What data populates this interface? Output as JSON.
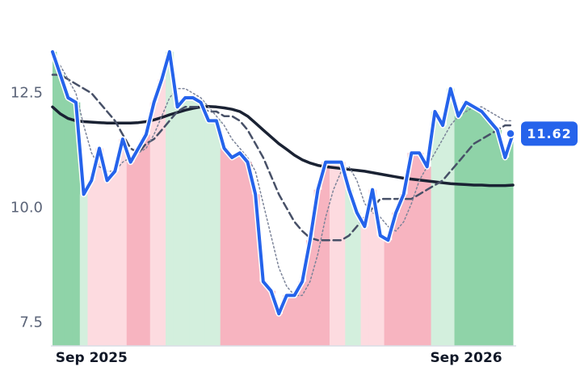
{
  "chart_data": {
    "type": "line",
    "categories": [
      null,
      null,
      null,
      null,
      null,
      "Sep 2025",
      null,
      null,
      null,
      null,
      null,
      null,
      null,
      null,
      null,
      null,
      null,
      null,
      null,
      null,
      null,
      null,
      null,
      null,
      null,
      null,
      null,
      null,
      null,
      null,
      null,
      null,
      null,
      null,
      null,
      null,
      null,
      null,
      null,
      null,
      null,
      null,
      null,
      null,
      null,
      null,
      null,
      null,
      null,
      null,
      null,
      null,
      null,
      "Sep 2026",
      null,
      null,
      null,
      null,
      null,
      null
    ],
    "ylim": [
      7,
      14
    ],
    "yticks": [
      7.5,
      {
        "value": 10,
        "label": "10.0"
      },
      12.5
    ],
    "series": [
      {
        "color": "#2563eb",
        "width": 4,
        "dash": "none",
        "values": [
          13.4,
          12.9,
          12.4,
          12.3,
          10.3,
          10.6,
          11.3,
          10.6,
          10.8,
          11.5,
          11.0,
          11.3,
          11.6,
          12.3,
          12.8,
          13.4,
          12.2,
          12.4,
          12.4,
          12.3,
          11.9,
          11.9,
          11.3,
          11.1,
          11.2,
          11.0,
          10.3,
          8.4,
          8.2,
          7.7,
          8.1,
          8.1,
          8.4,
          9.3,
          10.4,
          11.0,
          11.0,
          11.0,
          10.4,
          9.9,
          9.6,
          10.4,
          9.4,
          9.3,
          9.9,
          10.3,
          11.2,
          11.2,
          10.9,
          12.1,
          11.8,
          12.6,
          12.0,
          12.3,
          12.2,
          12.1,
          11.9,
          11.7,
          11.1,
          11.62
        ]
      },
      {
        "color": "#7c8499",
        "width": 1.5,
        "dash": "2 3",
        "values": [
          13.3,
          13.1,
          12.8,
          12.5,
          11.8,
          11.2,
          10.9,
          10.8,
          10.8,
          11.0,
          11.1,
          11.2,
          11.3,
          11.6,
          12.0,
          12.4,
          12.6,
          12.6,
          12.5,
          12.4,
          12.2,
          12.0,
          11.8,
          11.5,
          11.3,
          11.1,
          10.8,
          10.1,
          9.4,
          8.7,
          8.3,
          8.1,
          8.1,
          8.4,
          9.0,
          9.8,
          10.4,
          10.8,
          10.9,
          10.6,
          10.1,
          9.9,
          9.8,
          9.6,
          9.5,
          9.7,
          10.1,
          10.6,
          10.9,
          11.2,
          11.5,
          11.8,
          12.0,
          12.1,
          12.2,
          12.2,
          12.1,
          12.0,
          11.9,
          11.9
        ]
      },
      {
        "color": "#475067",
        "width": 2.5,
        "dash": "9 5",
        "values": [
          12.9,
          12.9,
          12.8,
          12.7,
          12.6,
          12.5,
          12.3,
          12.1,
          11.9,
          11.6,
          11.3,
          11.2,
          11.4,
          11.5,
          11.7,
          11.9,
          12.1,
          12.2,
          12.2,
          12.2,
          12.1,
          12.1,
          12.0,
          12.0,
          11.9,
          11.7,
          11.4,
          11.1,
          10.7,
          10.3,
          10.0,
          9.7,
          9.5,
          9.35,
          9.3,
          9.3,
          9.3,
          9.3,
          9.4,
          9.6,
          9.8,
          10.0,
          10.2,
          10.2,
          10.2,
          10.2,
          10.2,
          10.3,
          10.4,
          10.5,
          10.6,
          10.8,
          11.0,
          11.2,
          11.4,
          11.5,
          11.6,
          11.7,
          11.8,
          11.8
        ]
      },
      {
        "color": "#1a2233",
        "width": 3.5,
        "dash": "none",
        "values": [
          12.2,
          12.05,
          11.95,
          11.9,
          11.88,
          11.87,
          11.86,
          11.85,
          11.85,
          11.85,
          11.85,
          11.86,
          11.88,
          11.92,
          11.97,
          12.03,
          12.08,
          12.13,
          12.17,
          12.2,
          12.21,
          12.2,
          12.18,
          12.15,
          12.1,
          12.0,
          11.85,
          11.7,
          11.55,
          11.4,
          11.28,
          11.15,
          11.05,
          10.98,
          10.93,
          10.9,
          10.88,
          10.86,
          10.84,
          10.82,
          10.8,
          10.77,
          10.74,
          10.71,
          10.68,
          10.65,
          10.63,
          10.61,
          10.59,
          10.57,
          10.55,
          10.53,
          10.52,
          10.51,
          10.5,
          10.5,
          10.49,
          10.49,
          10.49,
          10.5
        ]
      }
    ],
    "area_colors": [
      "#8fd3a8",
      "#8fd3a8",
      "#8fd3a8",
      "#8fd3a8",
      "#d3efdd",
      "#fddbe0",
      "#fddbe0",
      "#fddbe0",
      "#fddbe0",
      "#fddbe0",
      "#f7b4c0",
      "#f7b4c0",
      "#f7b4c0",
      "#fddbe0",
      "#fddbe0",
      "#d3efdd",
      "#d3efdd",
      "#d3efdd",
      "#d3efdd",
      "#d3efdd",
      "#d3efdd",
      "#d3efdd",
      "#f7b4c0",
      "#f7b4c0",
      "#f7b4c0",
      "#f7b4c0",
      "#f7b4c0",
      "#f7b4c0",
      "#f7b4c0",
      "#f7b4c0",
      "#f7b4c0",
      "#f7b4c0",
      "#f7b4c0",
      "#f7b4c0",
      "#f7b4c0",
      "#f7b4c0",
      "#fddbe0",
      "#fddbe0",
      "#d3efdd",
      "#d3efdd",
      "#fddbe0",
      "#fddbe0",
      "#fddbe0",
      "#f7b4c0",
      "#f7b4c0",
      "#f7b4c0",
      "#f7b4c0",
      "#f7b4c0",
      "#f7b4c0",
      "#d3efdd",
      "#d3efdd",
      "#d3efdd",
      "#8fd3a8",
      "#8fd3a8",
      "#8fd3a8",
      "#8fd3a8",
      "#8fd3a8",
      "#8fd3a8",
      "#8fd3a8",
      "#8fd3a8"
    ]
  }
}
